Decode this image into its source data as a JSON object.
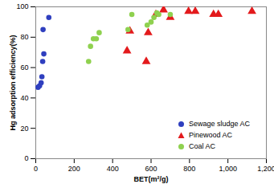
{
  "chart_data": {
    "type": "scatter",
    "xlabel": "BET(m²/g)",
    "ylabel": "Hg adsorption efficiency(%)",
    "xlim": [
      0,
      1200
    ],
    "xticks": [
      0,
      200,
      400,
      600,
      800,
      1000,
      1200
    ],
    "ylim": [
      0,
      100
    ],
    "yticks": [
      0,
      20,
      40,
      60,
      80,
      100
    ],
    "grid": false,
    "legend": "lower right",
    "series": [
      {
        "name": "Sewage sludge AC",
        "color": "#2f3fbf",
        "marker": "circle",
        "x": [
          12,
          20,
          28,
          32,
          36,
          42,
          38,
          68
        ],
        "values": [
          47,
          48,
          50,
          54,
          64,
          69,
          85,
          93
        ]
      },
      {
        "name": "Pinewood AC",
        "color": "#e31a1c",
        "marker": "triangle",
        "x": [
          475,
          490,
          575,
          585,
          625,
          665,
          700,
          795,
          830,
          925,
          950,
          1125
        ],
        "values": [
          71,
          84,
          64,
          83,
          95,
          98,
          93,
          97,
          97,
          95,
          95,
          97
        ]
      },
      {
        "name": "Coal AC",
        "color": "#8fd14f",
        "marker": "circle",
        "x": [
          275,
          285,
          300,
          315,
          330,
          480,
          500,
          580,
          600,
          615,
          630,
          640,
          700
        ],
        "values": [
          64,
          74,
          79,
          79,
          83,
          85,
          95,
          88,
          90,
          93,
          96,
          95,
          95
        ]
      }
    ]
  }
}
